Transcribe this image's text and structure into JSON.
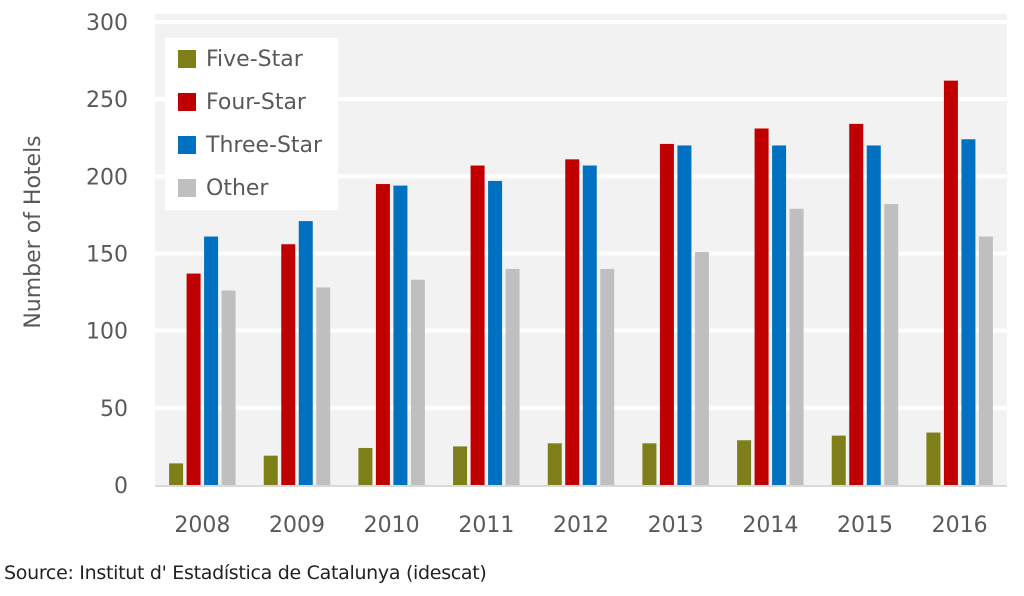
{
  "chart_data": {
    "type": "bar",
    "title": "",
    "xlabel": "",
    "ylabel": "Number of Hotels",
    "ylim": [
      0,
      300
    ],
    "yticks": [
      0,
      50,
      100,
      150,
      200,
      250,
      300
    ],
    "grid": true,
    "legend_position": "top-left",
    "categories": [
      "2008",
      "2009",
      "2010",
      "2011",
      "2012",
      "2013",
      "2014",
      "2015",
      "2016"
    ],
    "series": [
      {
        "name": "Five-Star",
        "color": "#7f7f1a",
        "values": [
          14,
          19,
          24,
          25,
          27,
          27,
          29,
          32,
          34
        ]
      },
      {
        "name": "Four-Star",
        "color": "#c00000",
        "values": [
          137,
          156,
          195,
          207,
          211,
          221,
          231,
          234,
          262
        ]
      },
      {
        "name": "Three-Star",
        "color": "#0070c0",
        "values": [
          161,
          171,
          194,
          197,
          207,
          220,
          220,
          220,
          224
        ]
      },
      {
        "name": "Other",
        "color": "#bfbfbf",
        "values": [
          126,
          128,
          133,
          140,
          140,
          151,
          179,
          182,
          161
        ]
      }
    ]
  },
  "source": "Source: Institut d' Estadística de Catalunya (idescat)"
}
